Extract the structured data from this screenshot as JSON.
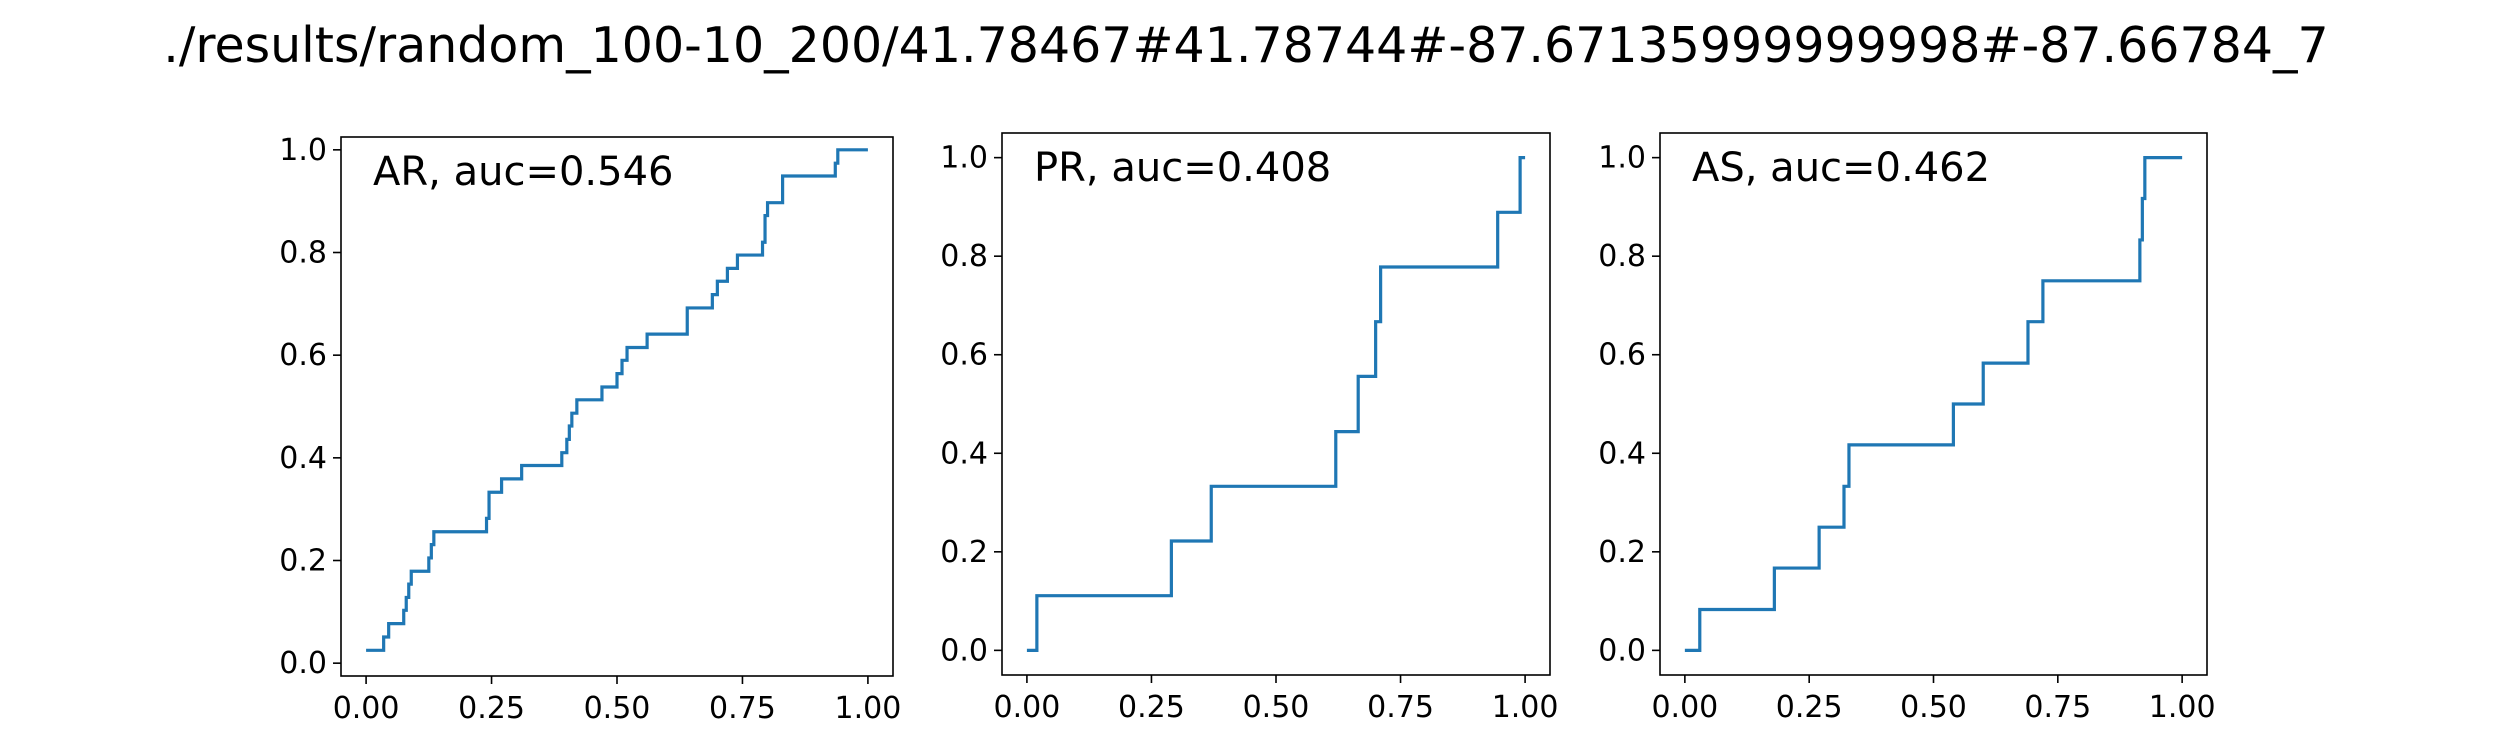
{
  "title": "./results/random_100-10_200/41.78467#41.78744#-87.67135999999998#-87.66784_7",
  "colors": {
    "line": "#1f77b4",
    "axes": "#000000",
    "background": "#ffffff"
  },
  "chart_data": [
    {
      "type": "line",
      "step": true,
      "annotation": "AR, auc=0.546",
      "xlim": [
        -0.05,
        1.05
      ],
      "ylim": [
        -0.025,
        1.025
      ],
      "xticks": [
        0.0,
        0.25,
        0.5,
        0.75,
        1.0
      ],
      "yticks": [
        0.0,
        0.2,
        0.4,
        0.6,
        0.8,
        1.0
      ],
      "xtick_labels": [
        "0.00",
        "0.25",
        "0.50",
        "0.75",
        "1.00"
      ],
      "ytick_labels": [
        "0.0",
        "0.2",
        "0.4",
        "0.6",
        "0.8",
        "1.0"
      ],
      "grid": false,
      "x": [
        0.0,
        0.035,
        0.045,
        0.06,
        0.075,
        0.08,
        0.085,
        0.09,
        0.095,
        0.125,
        0.13,
        0.135,
        0.14,
        0.24,
        0.245,
        0.25,
        0.27,
        0.31,
        0.39,
        0.4,
        0.405,
        0.41,
        0.42,
        0.43,
        0.47,
        0.5,
        0.51,
        0.52,
        0.53,
        0.56,
        0.64,
        0.69,
        0.7,
        0.72,
        0.74,
        0.79,
        0.795,
        0.8,
        0.83,
        0.935,
        0.94,
        0.945,
        1.0
      ],
      "y": [
        0.025,
        0.051,
        0.077,
        0.077,
        0.103,
        0.128,
        0.154,
        0.179,
        0.179,
        0.205,
        0.231,
        0.256,
        0.256,
        0.282,
        0.333,
        0.333,
        0.359,
        0.385,
        0.41,
        0.436,
        0.462,
        0.487,
        0.513,
        0.513,
        0.538,
        0.564,
        0.59,
        0.615,
        0.615,
        0.641,
        0.692,
        0.718,
        0.744,
        0.769,
        0.795,
        0.82,
        0.872,
        0.897,
        0.949,
        0.974,
        1.0,
        1.0,
        1.0
      ]
    },
    {
      "type": "line",
      "step": true,
      "annotation": "PR, auc=0.408",
      "xlim": [
        -0.05,
        1.05
      ],
      "ylim": [
        -0.05,
        1.05
      ],
      "xticks": [
        0.0,
        0.25,
        0.5,
        0.75,
        1.0
      ],
      "yticks": [
        0.0,
        0.2,
        0.4,
        0.6,
        0.8,
        1.0
      ],
      "xtick_labels": [
        "0.00",
        "0.25",
        "0.50",
        "0.75",
        "1.00"
      ],
      "ytick_labels": [
        "0.0",
        "0.2",
        "0.4",
        "0.6",
        "0.8",
        "1.0"
      ],
      "grid": false,
      "x": [
        0.0,
        0.02,
        0.29,
        0.37,
        0.62,
        0.665,
        0.7,
        0.71,
        0.945,
        0.99,
        1.0
      ],
      "y": [
        0.0,
        0.111,
        0.222,
        0.333,
        0.444,
        0.556,
        0.667,
        0.778,
        0.889,
        1.0,
        1.0
      ]
    },
    {
      "type": "line",
      "step": true,
      "annotation": "AS, auc=0.462",
      "xlim": [
        -0.05,
        1.05
      ],
      "ylim": [
        -0.05,
        1.05
      ],
      "xticks": [
        0.0,
        0.25,
        0.5,
        0.75,
        1.0
      ],
      "yticks": [
        0.0,
        0.2,
        0.4,
        0.6,
        0.8,
        1.0
      ],
      "xtick_labels": [
        "0.00",
        "0.25",
        "0.50",
        "0.75",
        "1.00"
      ],
      "ytick_labels": [
        "0.0",
        "0.2",
        "0.4",
        "0.6",
        "0.8",
        "1.0"
      ],
      "grid": false,
      "x": [
        0.0,
        0.03,
        0.18,
        0.27,
        0.32,
        0.33,
        0.54,
        0.6,
        0.69,
        0.72,
        0.915,
        0.92,
        0.925,
        1.0
      ],
      "y": [
        0.0,
        0.083,
        0.167,
        0.25,
        0.333,
        0.417,
        0.5,
        0.583,
        0.667,
        0.75,
        0.833,
        0.917,
        1.0,
        1.0
      ]
    }
  ]
}
